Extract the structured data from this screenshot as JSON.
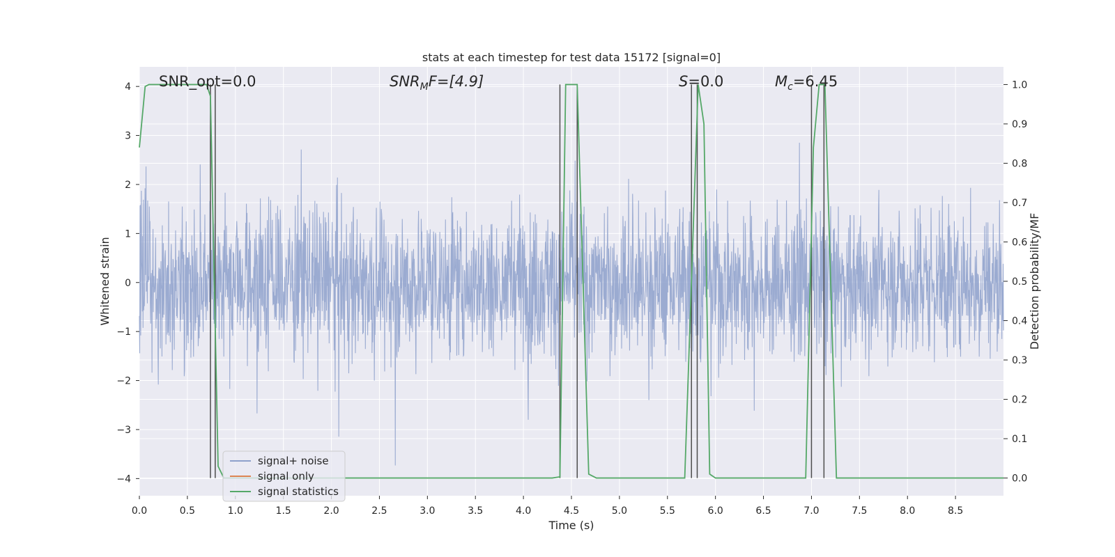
{
  "chart_data": {
    "type": "line",
    "title": "stats at each timestep for test data 15172 [signal=0]",
    "xlabel": "Time (s)",
    "ylabel_left": "Whitened strain",
    "ylabel_right": "Detection probability/MF",
    "xlim": [
      0,
      9.0
    ],
    "ylim_left": [
      -4.35,
      4.4
    ],
    "ylim_right": [
      -0.045,
      1.045
    ],
    "xticks": [
      0.0,
      0.5,
      1.0,
      1.5,
      2.0,
      2.5,
      3.0,
      3.5,
      4.0,
      4.5,
      5.0,
      5.5,
      6.0,
      6.5,
      7.0,
      7.5,
      8.0,
      8.5
    ],
    "xtick_labels": [
      "0.0",
      "0.5",
      "1.0",
      "1.5",
      "2.0",
      "2.5",
      "3.0",
      "3.5",
      "4.0",
      "4.5",
      "5.0",
      "5.5",
      "6.0",
      "6.5",
      "7.0",
      "7.5",
      "8.0",
      "8.5"
    ],
    "yticks_left": [
      -4,
      -3,
      -2,
      -1,
      0,
      1,
      2,
      3,
      4
    ],
    "ytick_labels_left": [
      "−4",
      "−3",
      "−2",
      "−1",
      "0",
      "1",
      "2",
      "3",
      "4"
    ],
    "yticks_right": [
      0.0,
      0.1,
      0.2,
      0.3,
      0.4,
      0.5,
      0.6,
      0.7,
      0.8,
      0.9,
      1.0
    ],
    "ytick_labels_right": [
      "0.0",
      "0.1",
      "0.2",
      "0.3",
      "0.4",
      "0.5",
      "0.6",
      "0.7",
      "0.8",
      "0.9",
      "1.0"
    ],
    "grid": true,
    "legend_position": "lower-left",
    "legend": [
      {
        "label": "signal+ noise",
        "color": "#8da0cb"
      },
      {
        "label": "signal only",
        "color": "#dd8452"
      },
      {
        "label": "signal statistics",
        "color": "#55a868"
      }
    ],
    "annotations": {
      "snr_opt": "SNR_opt=0.0",
      "snr_mf_base": "SNR",
      "snr_mf_sub": "M",
      "snr_mf_rest": "F=[4.9]",
      "s_base": "S",
      "s_rest": "=0.0",
      "mc_base": "M",
      "mc_sub": "c",
      "mc_rest": "=6.45"
    },
    "series": [
      {
        "name": "signal+ noise",
        "axis": "left",
        "kind": "noise_trace",
        "color": "#8da0cb",
        "amplitude_typical": 1.6,
        "amplitude_peak": 3.5,
        "x_range": [
          0,
          9.0
        ]
      },
      {
        "name": "signal only",
        "axis": "left",
        "color": "#dd8452",
        "x": [],
        "y": []
      },
      {
        "name": "signal statistics",
        "axis": "right",
        "color": "#55a868",
        "x": [
          0.0,
          0.06,
          0.1,
          0.2,
          0.4,
          0.6,
          0.7,
          0.74,
          0.82,
          0.88,
          1.0,
          2.0,
          3.0,
          4.0,
          4.3,
          4.38,
          4.44,
          4.56,
          4.68,
          4.76,
          5.0,
          5.5,
          5.68,
          5.82,
          5.88,
          5.94,
          6.0,
          6.5,
          6.94,
          7.02,
          7.08,
          7.14,
          7.26,
          8.0,
          9.0
        ],
        "y": [
          0.84,
          0.995,
          1.0,
          1.0,
          1.0,
          1.0,
          1.0,
          0.97,
          0.03,
          0.0,
          0.0,
          0.0,
          0.0,
          0.0,
          0.0,
          0.003,
          1.0,
          1.0,
          0.01,
          0.0,
          0.0,
          0.0,
          0.0,
          1.0,
          0.9,
          0.01,
          0.0,
          0.0,
          0.0,
          0.84,
          1.0,
          1.0,
          0.0,
          0.0,
          0.0
        ]
      }
    ],
    "vertical_markers_x": [
      0.74,
      0.79,
      4.38,
      4.56,
      5.75,
      5.81,
      7.0,
      7.13
    ],
    "vertical_markers_range_right": [
      0.0,
      1.0
    ],
    "colors": {
      "background": "#eaeaf2",
      "grid": "#ffffff",
      "marker": "#4d4d4d"
    }
  }
}
